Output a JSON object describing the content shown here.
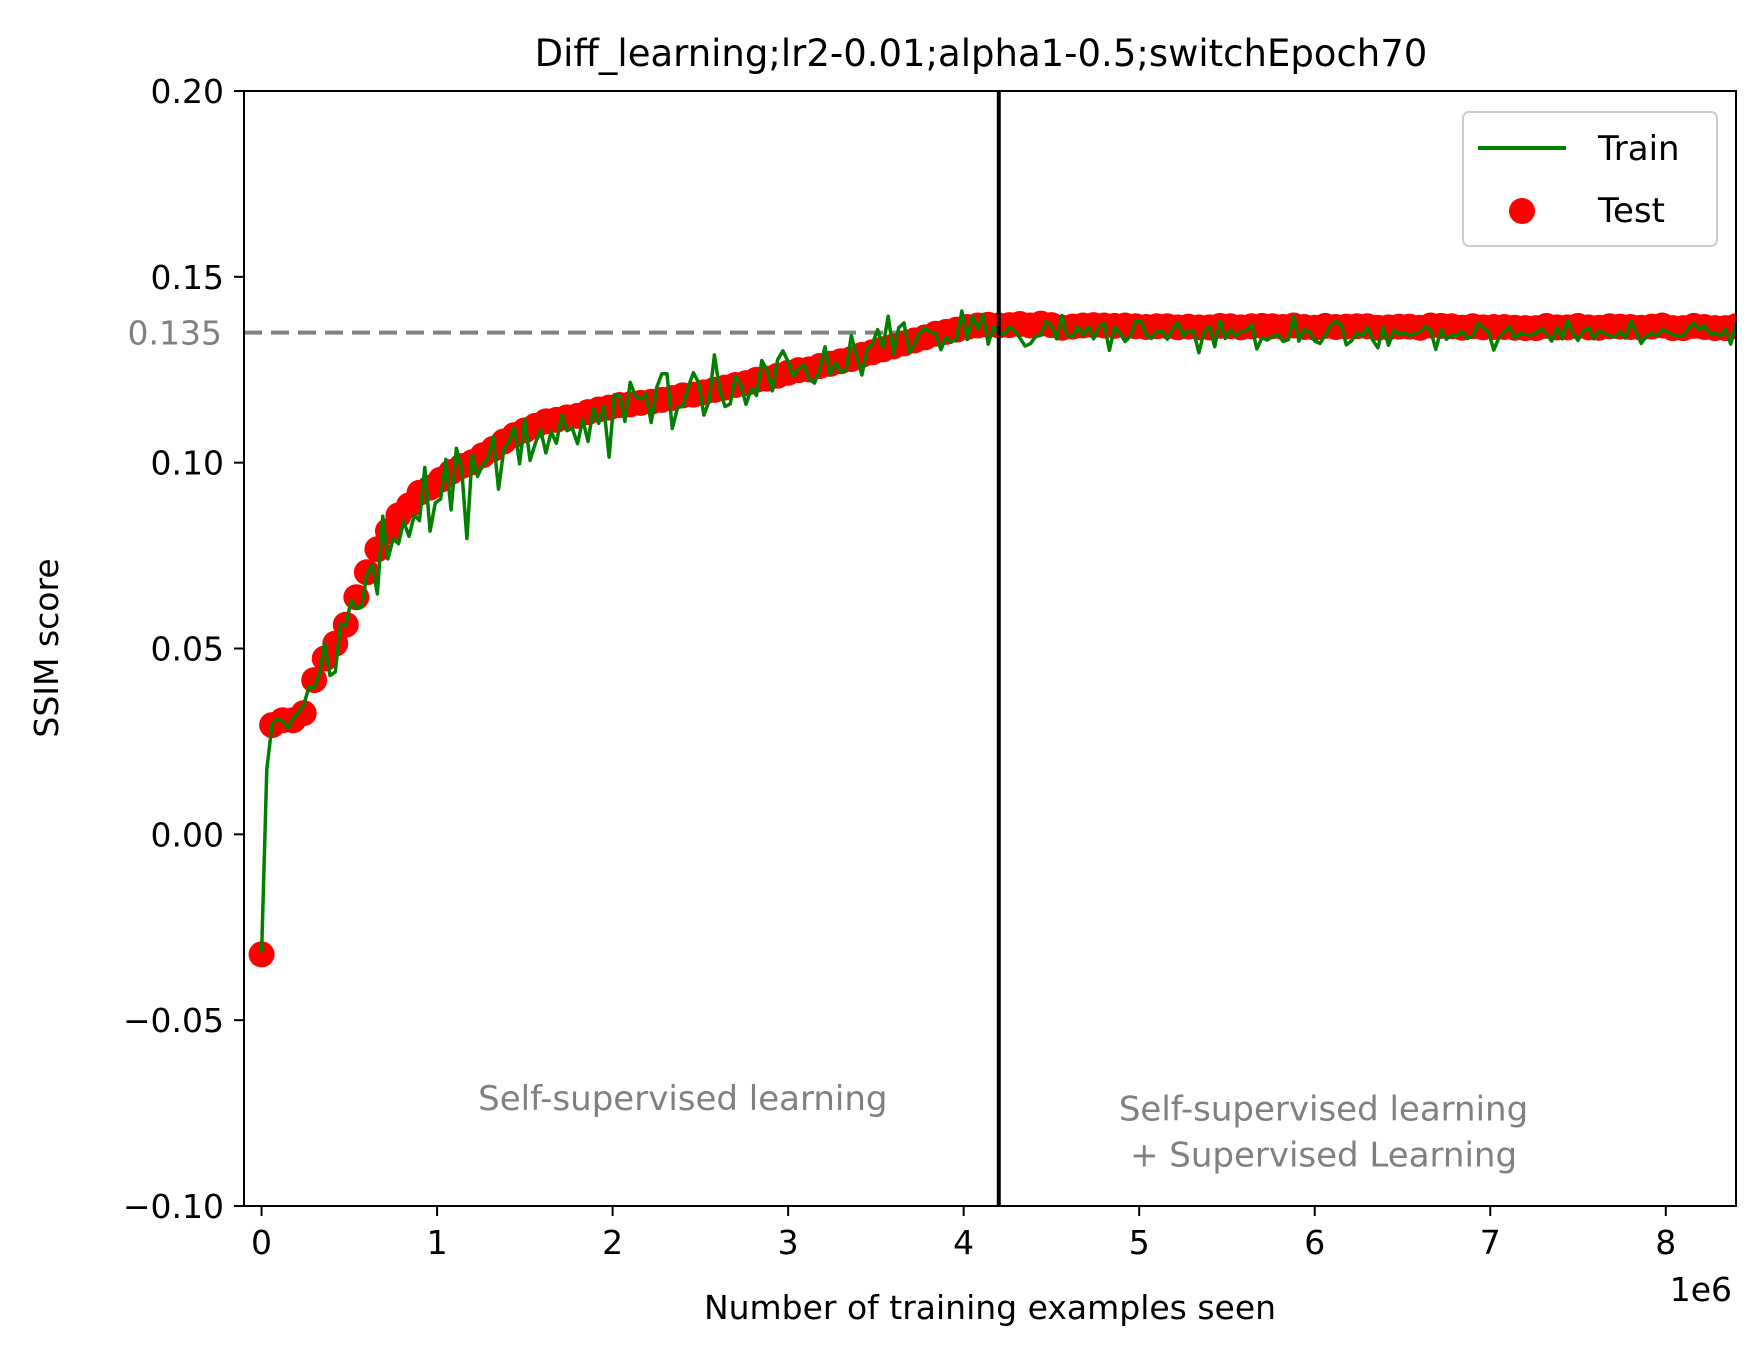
{
  "chart_data": {
    "type": "line",
    "title": "Diff_learning;lr2-0.01;alpha1-0.5;switchEpoch70",
    "xlabel": "Number of training examples seen",
    "ylabel": "SSIM score",
    "x_offset_label": "1e6",
    "xlim": [
      -0.1,
      8.4
    ],
    "ylim": [
      -0.1,
      0.2
    ],
    "x_ticks": [
      0,
      1,
      2,
      3,
      4,
      5,
      6,
      7,
      8
    ],
    "x_tick_labels": [
      "0",
      "1",
      "2",
      "3",
      "4",
      "5",
      "6",
      "7",
      "8"
    ],
    "y_ticks": [
      -0.1,
      -0.05,
      0.0,
      0.05,
      0.1,
      0.15,
      0.2
    ],
    "y_tick_labels": [
      "−0.10",
      "−0.05",
      "0.00",
      "0.05",
      "0.10",
      "0.15",
      "0.20"
    ],
    "grid": false,
    "legend_position": "top-right",
    "reference_line": {
      "y": 0.135,
      "label": "0.135",
      "color": "#808080",
      "style": "dashed"
    },
    "switch_line": {
      "x": 4.2,
      "color": "#000000"
    },
    "annotations": [
      {
        "lines": [
          "Self-supervised learning"
        ],
        "x": 2.4,
        "y": -0.071
      },
      {
        "lines": [
          "Self-supervised learning",
          "+ Supervised Learning"
        ],
        "x": 6.05,
        "y": -0.08
      }
    ],
    "series": [
      {
        "name": "Train",
        "kind": "line",
        "color": "#008000",
        "x": [
          0,
          0.03,
          0.06,
          0.09,
          0.12,
          0.15,
          0.18,
          0.21,
          0.24,
          0.27,
          0.3,
          0.33,
          0.36,
          0.39,
          0.42,
          0.45,
          0.48,
          0.51,
          0.54,
          0.57,
          0.6,
          0.63,
          0.66,
          0.69,
          0.72,
          0.75,
          0.78,
          0.81,
          0.84,
          0.87,
          0.9,
          0.93,
          0.96,
          0.99,
          1.02,
          1.05,
          1.08,
          1.11,
          1.14,
          1.17,
          1.2,
          1.23,
          1.26,
          1.29,
          1.32,
          1.35,
          1.38,
          1.41,
          1.44,
          1.47,
          1.5,
          1.53,
          1.56,
          1.59,
          1.62,
          1.65,
          1.68,
          1.71,
          1.74,
          1.77,
          1.8,
          1.83,
          1.86,
          1.89,
          1.92,
          1.95,
          1.98,
          2.01,
          2.04,
          2.07,
          2.1,
          2.13,
          2.16,
          2.19,
          2.22,
          2.25,
          2.28,
          2.31,
          2.34,
          2.37,
          2.4,
          2.43,
          2.46,
          2.49,
          2.52,
          2.55,
          2.58,
          2.61,
          2.64,
          2.67,
          2.7,
          2.73,
          2.76,
          2.79,
          2.82,
          2.85,
          2.88,
          2.91,
          2.94,
          2.97,
          3.0,
          3.03,
          3.06,
          3.09,
          3.12,
          3.15,
          3.18,
          3.21,
          3.24,
          3.27,
          3.3,
          3.33,
          3.36,
          3.39,
          3.42,
          3.45,
          3.48,
          3.51,
          3.54,
          3.57,
          3.6,
          3.63,
          3.66,
          3.69,
          3.72,
          3.75,
          3.78,
          3.81,
          3.84,
          3.87,
          3.9,
          3.93,
          3.96,
          3.99,
          4.02,
          4.05,
          4.08,
          4.11,
          4.14,
          4.17,
          4.2,
          4.23,
          4.26,
          4.29,
          4.32,
          4.35,
          4.38,
          4.41,
          4.44,
          4.47,
          4.5,
          4.53,
          4.56,
          4.59,
          4.62,
          4.65,
          4.68,
          4.71,
          4.74,
          4.77,
          4.8,
          4.83,
          4.86,
          4.89,
          4.92,
          4.95,
          4.98,
          5.01,
          5.04,
          5.07,
          5.1,
          5.13,
          5.16,
          5.19,
          5.22,
          5.25,
          5.28,
          5.31,
          5.34,
          5.37,
          5.4,
          5.43,
          5.46,
          5.49,
          5.52,
          5.55,
          5.58,
          5.61,
          5.64,
          5.67,
          5.7,
          5.73,
          5.76,
          5.79,
          5.82,
          5.85,
          5.88,
          5.91,
          5.94,
          5.97,
          6.0,
          6.03,
          6.06,
          6.09,
          6.12,
          6.15,
          6.18,
          6.21,
          6.24,
          6.27,
          6.3,
          6.33,
          6.36,
          6.39,
          6.42,
          6.45,
          6.48,
          6.51,
          6.54,
          6.57,
          6.6,
          6.63,
          6.66,
          6.69,
          6.72,
          6.75,
          6.78,
          6.81,
          6.84,
          6.87,
          6.9,
          6.93,
          6.96,
          6.99,
          7.02,
          7.05,
          7.08,
          7.11,
          7.14,
          7.17,
          7.2,
          7.23,
          7.26,
          7.29,
          7.32,
          7.35,
          7.38,
          7.41,
          7.44,
          7.47,
          7.5,
          7.53,
          7.56,
          7.59,
          7.62,
          7.65,
          7.68,
          7.71,
          7.74,
          7.77,
          7.8,
          7.83,
          7.86,
          7.89,
          7.92,
          7.95,
          7.98,
          8.01,
          8.04,
          8.07,
          8.1,
          8.13,
          8.16,
          8.19,
          8.22,
          8.25,
          8.28,
          8.31,
          8.34,
          8.37,
          8.4
        ],
        "y": [
          -0.0318,
          0.0175,
          0.0297,
          0.031,
          0.0304,
          0.0287,
          0.0312,
          0.0329,
          0.0348,
          0.0396,
          0.0395,
          0.0433,
          0.0513,
          0.0427,
          0.0437,
          0.0566,
          0.0562,
          0.0629,
          0.0609,
          0.0611,
          0.0699,
          0.0726,
          0.0647,
          0.0856,
          0.0741,
          0.0795,
          0.0782,
          0.0842,
          0.0802,
          0.0859,
          0.0844,
          0.0987,
          0.0816,
          0.0892,
          0.0902,
          0.1009,
          0.0873,
          0.1039,
          0.0982,
          0.0796,
          0.1021,
          0.0963,
          0.0995,
          0.1012,
          0.1069,
          0.0929,
          0.1035,
          0.1056,
          0.1096,
          0.0997,
          0.1116,
          0.1006,
          0.1053,
          0.1089,
          0.1026,
          0.1083,
          0.1052,
          0.1129,
          0.1086,
          0.1093,
          0.1051,
          0.1116,
          0.1057,
          0.1146,
          0.1106,
          0.115,
          0.1015,
          0.1183,
          0.1181,
          0.1111,
          0.1216,
          0.1179,
          0.1171,
          0.1185,
          0.1108,
          0.1201,
          0.1239,
          0.1239,
          0.1092,
          0.1148,
          0.1152,
          0.1203,
          0.1242,
          0.1215,
          0.1128,
          0.1167,
          0.129,
          0.1195,
          0.1151,
          0.1158,
          0.1233,
          0.1209,
          0.1157,
          0.1199,
          0.1181,
          0.1275,
          0.1248,
          0.1193,
          0.1277,
          0.1301,
          0.1271,
          0.1232,
          0.1253,
          0.1263,
          0.1225,
          0.1214,
          0.125,
          0.1312,
          0.1236,
          0.1269,
          0.1245,
          0.1248,
          0.1342,
          0.1286,
          0.1236,
          0.1305,
          0.132,
          0.1358,
          0.131,
          0.1394,
          0.1294,
          0.1363,
          0.1376,
          0.1296,
          0.1318,
          0.1351,
          0.1362,
          0.1351,
          0.1348,
          0.1304,
          0.1337,
          0.1324,
          0.1334,
          0.1408,
          0.1331,
          0.1394,
          0.1359,
          0.1399,
          0.1319,
          0.1366,
          0.1348,
          0.1345,
          0.1365,
          0.1355,
          0.1336,
          0.1314,
          0.132,
          0.1339,
          0.1343,
          0.1382,
          0.1366,
          0.1333,
          0.1396,
          0.1342,
          0.1339,
          0.1365,
          0.1343,
          0.1366,
          0.1333,
          0.1364,
          0.1376,
          0.1302,
          0.1365,
          0.1348,
          0.1326,
          0.134,
          0.138,
          0.138,
          0.1343,
          0.1334,
          0.1355,
          0.1354,
          0.1332,
          0.136,
          0.1378,
          0.1341,
          0.1356,
          0.1353,
          0.1296,
          0.1353,
          0.1367,
          0.1312,
          0.1383,
          0.1334,
          0.1357,
          0.134,
          0.1355,
          0.1355,
          0.1372,
          0.1306,
          0.1336,
          0.133,
          0.134,
          0.1345,
          0.1326,
          0.1331,
          0.1395,
          0.1327,
          0.1359,
          0.135,
          0.1327,
          0.1321,
          0.1344,
          0.1369,
          0.138,
          0.1371,
          0.1317,
          0.1328,
          0.1349,
          0.1342,
          0.1363,
          0.133,
          0.1309,
          0.1364,
          0.1316,
          0.1357,
          0.1344,
          0.1349,
          0.1342,
          0.1348,
          0.1351,
          0.1367,
          0.1356,
          0.1305,
          0.1358,
          0.1332,
          0.1343,
          0.1343,
          0.1353,
          0.1334,
          0.1341,
          0.1376,
          0.1362,
          0.1352,
          0.1303,
          0.1337,
          0.1353,
          0.1364,
          0.1335,
          0.1348,
          0.1345,
          0.1343,
          0.1348,
          0.1361,
          0.1347,
          0.1327,
          0.1363,
          0.1333,
          0.1384,
          0.1347,
          0.1329,
          0.1356,
          0.1363,
          0.1333,
          0.1356,
          0.1349,
          0.1341,
          0.1338,
          0.1352,
          0.1335,
          0.1381,
          0.1353,
          0.1321,
          0.1341,
          0.1348,
          0.1341,
          0.1359,
          0.1351,
          0.1344,
          0.134,
          0.1341,
          0.1362,
          0.1376,
          0.1357,
          0.1369,
          0.1347,
          0.1349,
          0.1341,
          0.1358,
          0.1319,
          0.1372
        ]
      },
      {
        "name": "Test",
        "kind": "scatter",
        "color": "#ff0000",
        "x": [
          0,
          0.06,
          0.12,
          0.18,
          0.24,
          0.3,
          0.36,
          0.42,
          0.48,
          0.54,
          0.6,
          0.66,
          0.72,
          0.78,
          0.84,
          0.9,
          0.96,
          1.02,
          1.08,
          1.14,
          1.2,
          1.26,
          1.32,
          1.38,
          1.44,
          1.5,
          1.56,
          1.62,
          1.68,
          1.74,
          1.8,
          1.86,
          1.92,
          1.98,
          2.04,
          2.1,
          2.16,
          2.22,
          2.28,
          2.34,
          2.4,
          2.46,
          2.52,
          2.58,
          2.64,
          2.7,
          2.76,
          2.82,
          2.88,
          2.94,
          3.0,
          3.06,
          3.12,
          3.18,
          3.24,
          3.3,
          3.36,
          3.42,
          3.48,
          3.54,
          3.6,
          3.66,
          3.72,
          3.78,
          3.84,
          3.9,
          3.96,
          4.02,
          4.08,
          4.14,
          4.2,
          4.26,
          4.32,
          4.38,
          4.44,
          4.5,
          4.56,
          4.62,
          4.68,
          4.74,
          4.8,
          4.86,
          4.92,
          4.98,
          5.04,
          5.1,
          5.16,
          5.22,
          5.28,
          5.34,
          5.4,
          5.46,
          5.52,
          5.58,
          5.64,
          5.7,
          5.76,
          5.82,
          5.88,
          5.94,
          6.0,
          6.06,
          6.12,
          6.18,
          6.24,
          6.3,
          6.36,
          6.42,
          6.48,
          6.54,
          6.6,
          6.66,
          6.72,
          6.78,
          6.84,
          6.9,
          6.96,
          7.02,
          7.08,
          7.14,
          7.2,
          7.26,
          7.32,
          7.38,
          7.44,
          7.5,
          7.56,
          7.62,
          7.68,
          7.74,
          7.8,
          7.86,
          7.92,
          7.98,
          8.04,
          8.1,
          8.16,
          8.22,
          8.28,
          8.34,
          8.4
        ],
        "y": [
          -0.0323,
          0.0294,
          0.0307,
          0.0307,
          0.0326,
          0.0415,
          0.0473,
          0.0513,
          0.0564,
          0.0638,
          0.0705,
          0.0767,
          0.0816,
          0.0858,
          0.0885,
          0.0919,
          0.0933,
          0.0954,
          0.0975,
          0.0991,
          0.1001,
          0.102,
          0.1037,
          0.1057,
          0.1074,
          0.1087,
          0.1099,
          0.1111,
          0.1115,
          0.1122,
          0.1126,
          0.1136,
          0.1143,
          0.1148,
          0.1155,
          0.1157,
          0.1161,
          0.1164,
          0.1169,
          0.1174,
          0.1181,
          0.1183,
          0.1189,
          0.1196,
          0.1202,
          0.1209,
          0.1214,
          0.1223,
          0.1226,
          0.1234,
          0.1242,
          0.1249,
          0.1251,
          0.126,
          0.1266,
          0.1273,
          0.1279,
          0.129,
          0.1297,
          0.1305,
          0.1313,
          0.1321,
          0.1329,
          0.1337,
          0.1347,
          0.1352,
          0.1358,
          0.1365,
          0.1369,
          0.1371,
          0.1369,
          0.137,
          0.1373,
          0.1369,
          0.1374,
          0.137,
          0.1363,
          0.1366,
          0.1369,
          0.137,
          0.1369,
          0.1368,
          0.1369,
          0.1367,
          0.1365,
          0.1367,
          0.1367,
          0.1364,
          0.1366,
          0.1364,
          0.1364,
          0.1368,
          0.1367,
          0.1364,
          0.1367,
          0.1368,
          0.1367,
          0.1365,
          0.1369,
          0.1365,
          0.1363,
          0.1368,
          0.1365,
          0.1366,
          0.1367,
          0.1367,
          0.1363,
          0.1364,
          0.1366,
          0.1366,
          0.1363,
          0.1369,
          0.1368,
          0.1367,
          0.1363,
          0.1367,
          0.1364,
          0.1365,
          0.1365,
          0.1363,
          0.1362,
          0.1362,
          0.1368,
          0.1364,
          0.1364,
          0.1368,
          0.1364,
          0.1363,
          0.1367,
          0.1366,
          0.1365,
          0.1363,
          0.1366,
          0.1369,
          0.1362,
          0.1362,
          0.1368,
          0.1365,
          0.1362,
          0.1362,
          0.1367
        ]
      }
    ]
  }
}
